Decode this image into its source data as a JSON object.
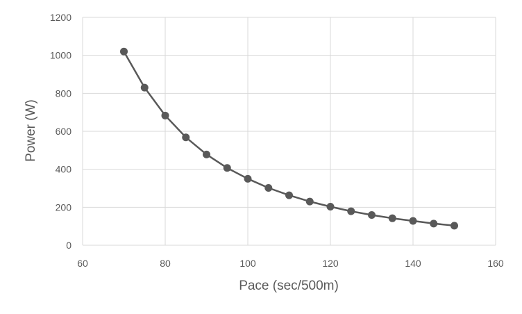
{
  "chart_data": {
    "type": "line",
    "xlabel": "Pace (sec/500m)",
    "ylabel": "Power (W)",
    "xlim": [
      60,
      160
    ],
    "ylim": [
      0,
      1200
    ],
    "x_ticks": [
      "60",
      "80",
      "100",
      "120",
      "140",
      "160"
    ],
    "y_ticks": [
      "0",
      "200",
      "400",
      "600",
      "800",
      "1000",
      "1200"
    ],
    "grid": true,
    "legend": "none",
    "series": [
      {
        "x": [
          70,
          75,
          80,
          85,
          90,
          95,
          100,
          105,
          110,
          115,
          120,
          125,
          130,
          135,
          140,
          145,
          150
        ],
        "values": [
          1020,
          830,
          683,
          568,
          478,
          407,
          350,
          302,
          263,
          230,
          203,
          179,
          159,
          142,
          128,
          114,
          103
        ],
        "color": "#595959"
      }
    ]
  }
}
